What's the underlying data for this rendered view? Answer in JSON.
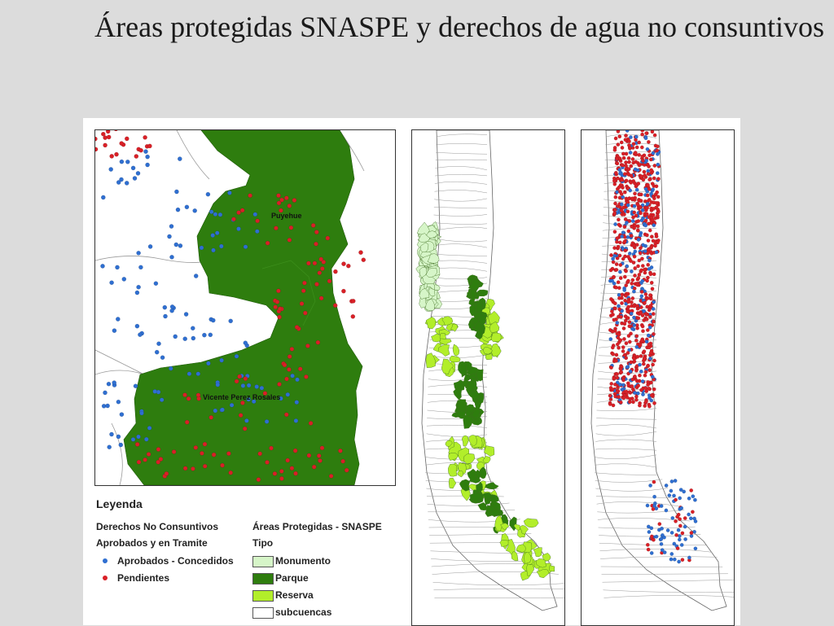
{
  "title": "Áreas protegidas SNASPE y derechos de agua no consuntivos",
  "colors": {
    "parque": "#2e7d0e",
    "reserva": "#b2ee2a",
    "monumento": "#d6f5c8",
    "aprobados": "#2f6fd1",
    "pendientes": "#d92027",
    "subcuencas": "#ffffff"
  },
  "maps": {
    "detail": {
      "labels": [
        "Puyehue",
        "Vicente Perez Rosales"
      ]
    }
  },
  "legend": {
    "title": "Leyenda",
    "rights_heading_1": "Derechos No Consuntivos",
    "rights_heading_2": "Aprobados y en Tramite",
    "rights_items": [
      {
        "label": "Aprobados - Concedidos",
        "icon": "blue-dot-icon"
      },
      {
        "label": "Pendientes",
        "icon": "red-dot-icon"
      }
    ],
    "areas_heading_1": "Áreas Protegidas - SNASPE",
    "areas_heading_2": "Tipo",
    "areas_items": [
      {
        "label": "Monumento"
      },
      {
        "label": "Parque"
      },
      {
        "label": "Reserva"
      },
      {
        "label": "subcuencas"
      }
    ]
  }
}
